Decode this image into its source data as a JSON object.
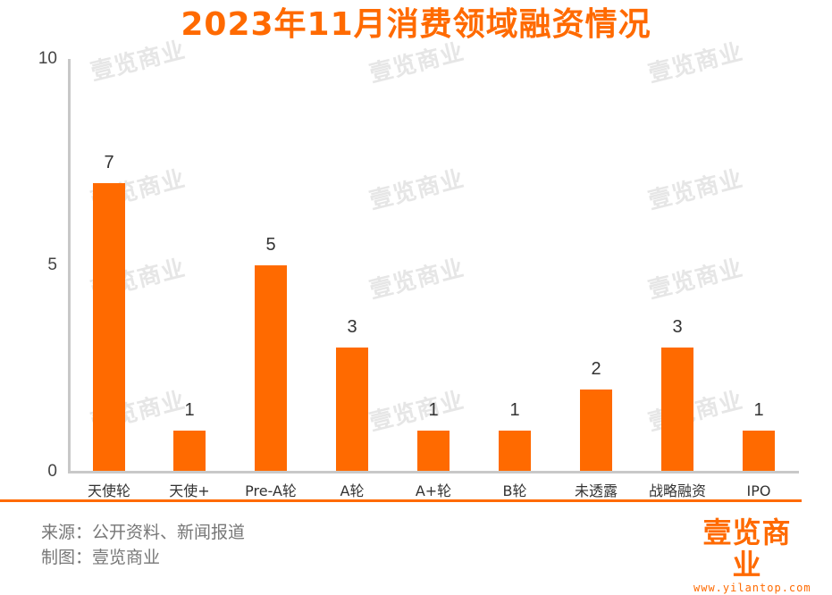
{
  "title": "2023年11月消费领域融资情况",
  "watermark_text": "壹览商业",
  "colors": {
    "bar": "#ff6a00",
    "title": "#ff6a00",
    "axis": "#c8c8c8",
    "separator": "#ff6a00",
    "footer_text": "#777777"
  },
  "y_axis": {
    "ticks": [
      "10",
      "5",
      "0"
    ]
  },
  "bars": [
    {
      "category": "天使轮",
      "value": 7,
      "label": "7"
    },
    {
      "category": "天使+",
      "value": 1,
      "label": "1"
    },
    {
      "category": "Pre-A轮",
      "value": 5,
      "label": "5"
    },
    {
      "category": "A轮",
      "value": 3,
      "label": "3"
    },
    {
      "category": "A+轮",
      "value": 1,
      "label": "1"
    },
    {
      "category": "B轮",
      "value": 1,
      "label": "1"
    },
    {
      "category": "未透露",
      "value": 2,
      "label": "2"
    },
    {
      "category": "战略融资",
      "value": 3,
      "label": "3"
    },
    {
      "category": "IPO",
      "value": 1,
      "label": "1"
    }
  ],
  "footer": {
    "source": "来源：公开资料、新闻报道",
    "made_by": "制图：壹览商业"
  },
  "logo": {
    "name": "壹览商业",
    "url": "www.yilantop.com"
  },
  "chart_data": {
    "type": "bar",
    "title": "2023年11月消费领域融资情况",
    "categories": [
      "天使轮",
      "天使+",
      "Pre-A轮",
      "A轮",
      "A+轮",
      "B轮",
      "未透露",
      "战略融资",
      "IPO"
    ],
    "values": [
      7,
      1,
      5,
      3,
      1,
      1,
      2,
      3,
      1
    ],
    "xlabel": "",
    "ylabel": "",
    "ylim": [
      0,
      10
    ],
    "yticks": [
      0,
      5,
      10
    ],
    "grid": false,
    "legend": null,
    "data_labels": true,
    "bar_color": "#ff6a00",
    "annotations": [
      "来源：公开资料、新闻报道",
      "制图：壹览商业",
      "壹览商业 www.yilantop.com"
    ]
  }
}
